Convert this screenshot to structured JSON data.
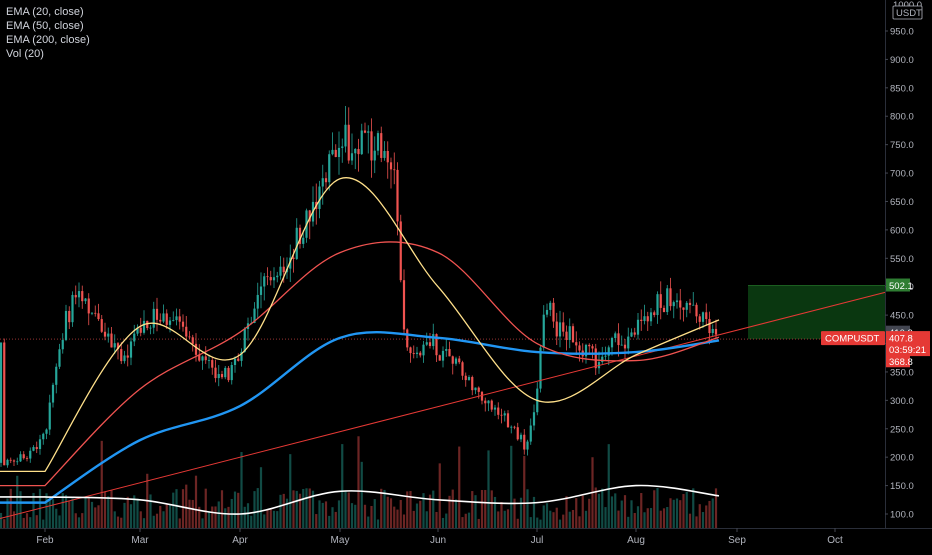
{
  "legend": {
    "ema20": "EMA (20, close)",
    "ema50": "EMA (50, close)",
    "ema200": "EMA (200, close)",
    "vol": "Vol (20)"
  },
  "axis": {
    "top_label": "1000.0",
    "unit": "USDT",
    "y_ticks": [
      "950.0",
      "900.0",
      "850.0",
      "800.0",
      "750.0",
      "700.0",
      "650.0",
      "600.0",
      "550.0",
      "500.0",
      "450.0",
      "400.0",
      "350.0",
      "300.0",
      "250.0",
      "200.0",
      "150.0",
      "100.0"
    ],
    "x_ticks": [
      "Feb",
      "Mar",
      "Apr",
      "May",
      "Jun",
      "Jul",
      "Aug",
      "Sep",
      "Oct"
    ]
  },
  "tags": {
    "target": "502.1",
    "mid": "410.3",
    "symbol": "COMPUSDT",
    "price": "407.8",
    "countdown": "03:59:21",
    "stop": "368.8"
  },
  "colors": {
    "up": "#26a69a",
    "down": "#ef5350",
    "ema20": "#ffe08a",
    "ema50": "#ef5350",
    "ema200": "#2196f3",
    "vol_ma": "#ffffff",
    "trendline": "#e53935",
    "target_zone": "#0b3d12"
  },
  "chart_data": {
    "type": "line",
    "symbol": "COMPUSDT",
    "y_range": [
      90,
      1000
    ],
    "x": [
      "Feb",
      "Mar",
      "Apr",
      "May",
      "Jun",
      "Jul",
      "Aug",
      "Sep",
      "Oct"
    ],
    "series": [
      {
        "name": "EMA (20, close)",
        "values": [
          175,
          430,
          380,
          690,
          500,
          300,
          380,
          455,
          447
        ]
      },
      {
        "name": "EMA (50, close)",
        "values": [
          150,
          320,
          420,
          560,
          560,
          400,
          370,
          420,
          440
        ]
      },
      {
        "name": "EMA (200, close)",
        "values": [
          120,
          230,
          290,
          410,
          410,
          385,
          385,
          410,
          412
        ]
      },
      {
        "name": "Vol (20)",
        "values": [
          130,
          125,
          100,
          140,
          125,
          120,
          150,
          128,
          125
        ]
      }
    ],
    "price_levels": {
      "target": 502.1,
      "mid": 410.3,
      "last": 407.8,
      "stop": 368.8
    }
  }
}
